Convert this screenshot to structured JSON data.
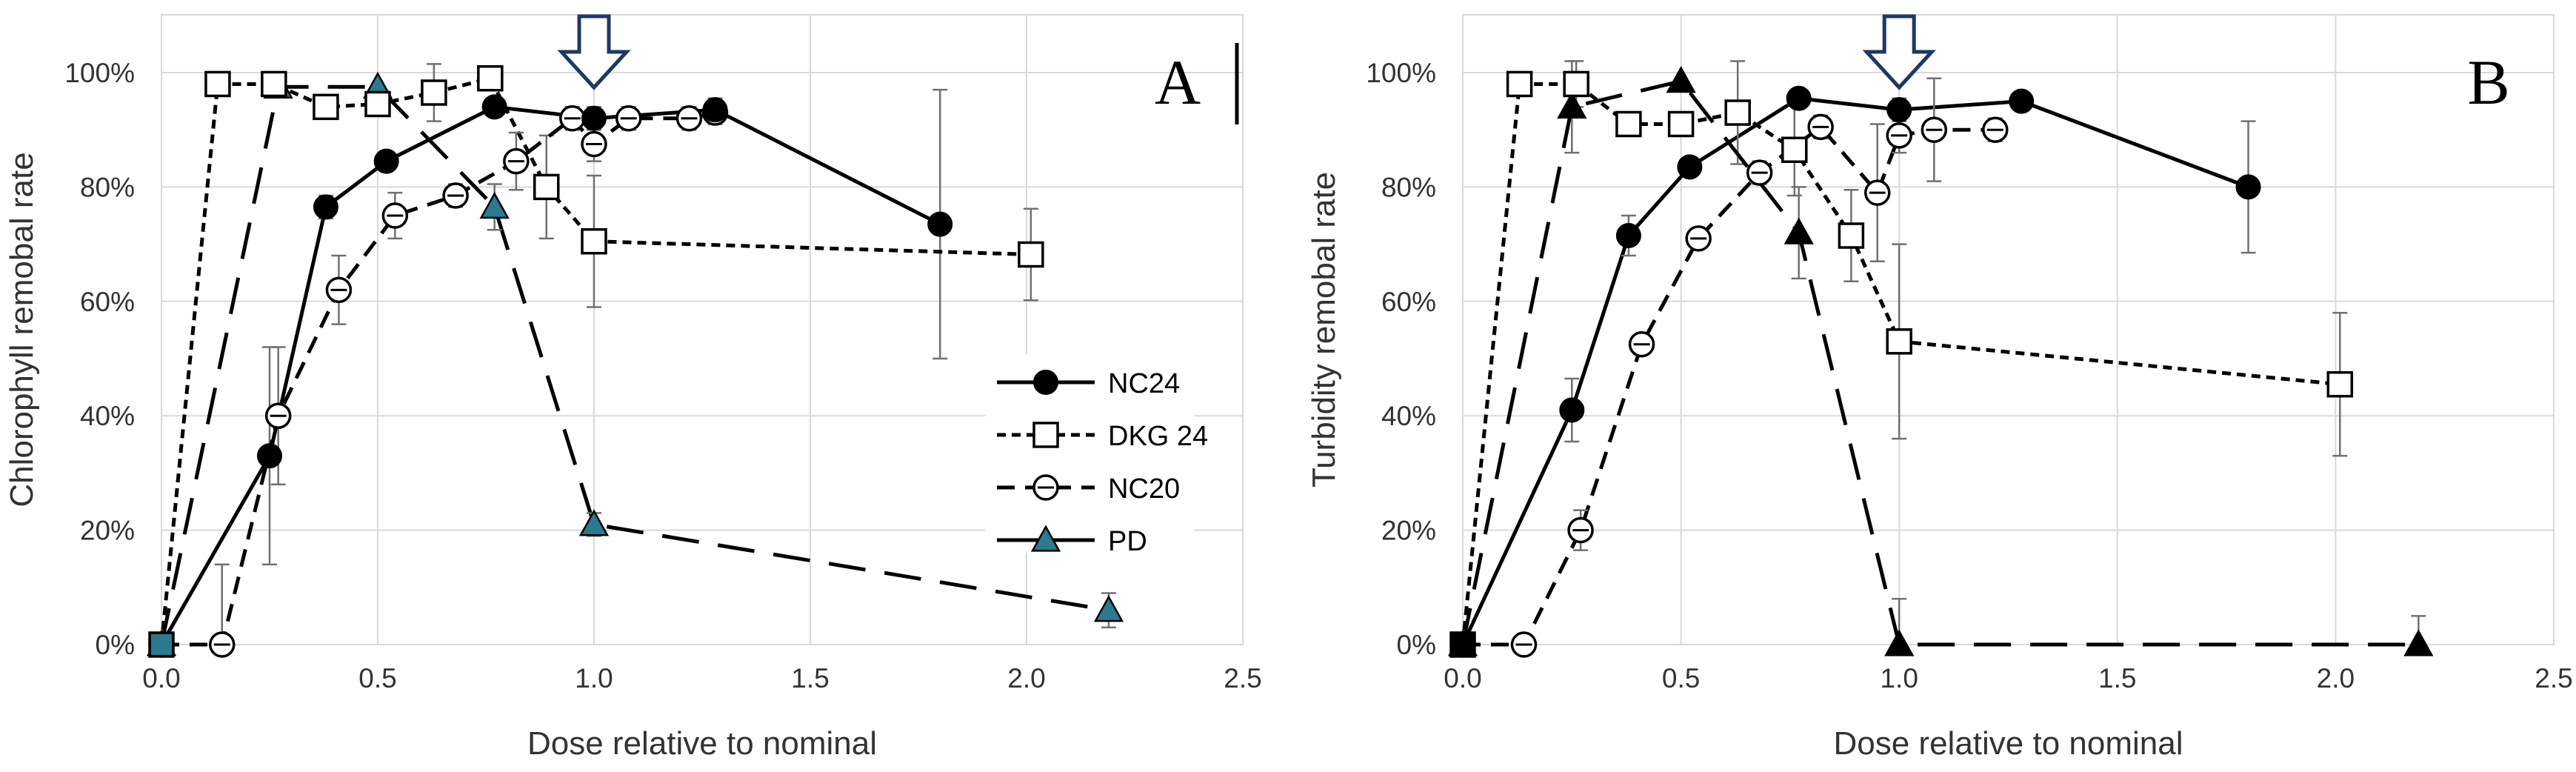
{
  "chart_data": [
    {
      "type": "line",
      "panel_letter": "A",
      "xlabel": "Dose relative to nominal",
      "ylabel": "Chlorophyll remobal rate",
      "xlim": [
        0,
        2.5
      ],
      "ylim": [
        0,
        1.0
      ],
      "x_ticks": [
        "0.0",
        "0.5",
        "1.0",
        "1.5",
        "2.0",
        "2.5"
      ],
      "y_ticks": [
        "0%",
        "20%",
        "40%",
        "60%",
        "80%",
        "100%"
      ],
      "grid": true,
      "legend_position": "right",
      "arrow_marker_x": 1.0,
      "series": [
        {
          "name": "NC24",
          "x": [
            0,
            0.25,
            0.38,
            0.52,
            0.77,
            1.0,
            1.28,
            1.8
          ],
          "y": [
            0,
            0.33,
            0.765,
            0.845,
            0.94,
            0.92,
            0.935,
            0.735
          ],
          "err": [
            0,
            0.19,
            0.02,
            0,
            0,
            0.02,
            0.02,
            0.235
          ]
        },
        {
          "name": "DKG 24",
          "x": [
            0,
            0.13,
            0.26,
            0.38,
            0.5,
            0.63,
            0.76,
            0.89,
            1.0,
            2.01
          ],
          "y": [
            0,
            0.98,
            0.98,
            0.94,
            0.945,
            0.965,
            0.99,
            0.8,
            0.705,
            0.682
          ],
          "err": [
            0,
            0,
            0,
            0.02,
            0.02,
            0.05,
            0.02,
            0.09,
            0.115,
            0.08
          ]
        },
        {
          "name": "NC20",
          "x": [
            0,
            0.14,
            0.27,
            0.41,
            0.54,
            0.68,
            0.82,
            0.95,
            1.0,
            1.08,
            1.22,
            1.28
          ],
          "y": [
            0,
            0,
            0.4,
            0.62,
            0.75,
            0.785,
            0.845,
            0.92,
            0.875,
            0.92,
            0.92,
            0.93
          ],
          "err": [
            0,
            0.14,
            0.12,
            0.06,
            0.04,
            0.02,
            0.05,
            0.02,
            0.03,
            0.02,
            0.02,
            0.02
          ]
        },
        {
          "name": "PD",
          "x": [
            0,
            0.27,
            0.5,
            0.77,
            1.0,
            2.19
          ],
          "y": [
            0,
            0.975,
            0.975,
            0.765,
            0.21,
            0.06
          ],
          "err": [
            0,
            0,
            0,
            0.04,
            0.02,
            0.03
          ]
        }
      ]
    },
    {
      "type": "line",
      "panel_letter": "B",
      "xlabel": "Dose relative to nominal",
      "ylabel": "Turbidity remobal rate",
      "xlim": [
        0,
        2.5
      ],
      "ylim": [
        0,
        1.0
      ],
      "x_ticks": [
        "0.0",
        "0.5",
        "1.0",
        "1.5",
        "2.0",
        "2.5"
      ],
      "y_ticks": [
        "0%",
        "20%",
        "40%",
        "60%",
        "80%",
        "100%"
      ],
      "grid": true,
      "arrow_marker_x": 1.0,
      "series": [
        {
          "name": "NC24",
          "x": [
            0,
            0.25,
            0.38,
            0.52,
            0.77,
            1.0,
            1.28,
            1.8
          ],
          "y": [
            0,
            0.41,
            0.715,
            0.835,
            0.955,
            0.935,
            0.95,
            0.8
          ],
          "err": [
            0,
            0.055,
            0.035,
            0,
            0,
            0.02,
            0,
            0.115
          ]
        },
        {
          "name": "DKG 24",
          "x": [
            0,
            0.13,
            0.26,
            0.38,
            0.5,
            0.63,
            0.76,
            0.89,
            1.0,
            2.01
          ],
          "y": [
            0,
            0.98,
            0.98,
            0.91,
            0.91,
            0.93,
            0.865,
            0.715,
            0.53,
            0.455
          ],
          "err": [
            0,
            0,
            0.04,
            0.02,
            0.02,
            0.09,
            0.08,
            0.08,
            0.17,
            0.125
          ]
        },
        {
          "name": "NC20",
          "x": [
            0,
            0.14,
            0.27,
            0.41,
            0.54,
            0.68,
            0.82,
            0.95,
            1.0,
            1.08,
            1.22
          ],
          "y": [
            0,
            0,
            0.2,
            0.525,
            0.71,
            0.825,
            0.905,
            0.79,
            0.89,
            0.9,
            0.9
          ],
          "err": [
            0,
            0,
            0.035,
            0,
            0,
            0.02,
            0.02,
            0.12,
            0.03,
            0.09,
            0.02
          ]
        },
        {
          "name": "PD",
          "x": [
            0,
            0.25,
            0.5,
            0.77,
            1.0,
            2.19
          ],
          "y": [
            0,
            0.94,
            0.985,
            0.72,
            0,
            0
          ],
          "err": [
            0,
            0.08,
            0,
            0.08,
            0.08,
            0.05
          ]
        }
      ]
    }
  ],
  "style": {
    "grid_color": "#d9d9d9",
    "line_color": "#000000",
    "pd_fill_A": "#2b7a8f",
    "pd_fill_B": "#000000",
    "err_color": "#707070",
    "arrow_fill": "#ffffff",
    "arrow_stroke": "#1f3864"
  }
}
